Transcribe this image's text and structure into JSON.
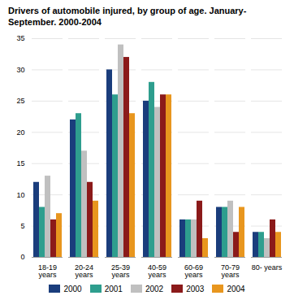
{
  "chart_data": {
    "type": "bar",
    "title": "Drivers of automobile injured, by group of age. January-\nSeptember. 2000-2004",
    "categories": [
      "18-19\nyears",
      "20-24\nyears",
      "25-39\nyears",
      "40-59\nyears",
      "60-69\nyears",
      "70-79\nyears",
      "80- years"
    ],
    "series": [
      {
        "name": "2000",
        "color": "#1a3d7c",
        "values": [
          12,
          22,
          30,
          25,
          6,
          8,
          4
        ]
      },
      {
        "name": "2001",
        "color": "#2e9e8e",
        "values": [
          8,
          23,
          26,
          28,
          6,
          8,
          4
        ]
      },
      {
        "name": "2002",
        "color": "#c0c0c0",
        "values": [
          13,
          17,
          34,
          24,
          6,
          9,
          3
        ]
      },
      {
        "name": "2003",
        "color": "#8b1a1a",
        "values": [
          6,
          12,
          32,
          26,
          9,
          4,
          6
        ]
      },
      {
        "name": "2004",
        "color": "#e8961e",
        "values": [
          7,
          9,
          23,
          26,
          3,
          8,
          4
        ]
      }
    ],
    "ylim": [
      0,
      35
    ],
    "yticks": [
      0,
      5,
      10,
      15,
      20,
      25,
      30,
      35
    ],
    "grid": true,
    "legend": "bottom"
  }
}
